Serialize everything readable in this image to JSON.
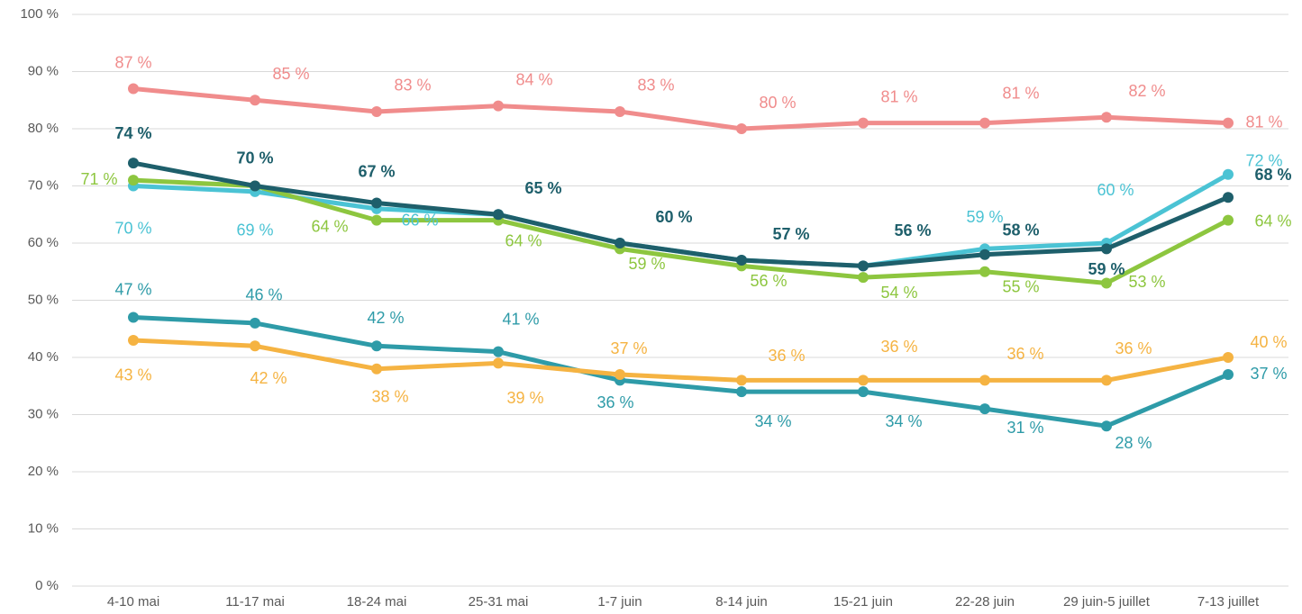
{
  "chart_data": {
    "type": "line",
    "categories": [
      "4-10 mai",
      "11-17 mai",
      "18-24 mai",
      "25-31 mai",
      "1-7 juin",
      "8-14 juin",
      "15-21 juin",
      "22-28 juin",
      "29 juin-5 juillet",
      "7-13 juillet"
    ],
    "ylim": [
      0,
      100
    ],
    "yticks": [
      {
        "value": 0,
        "label": "0 %"
      },
      {
        "value": 10,
        "label": "10 %"
      },
      {
        "value": 20,
        "label": "20 %"
      },
      {
        "value": 30,
        "label": "30 %"
      },
      {
        "value": 40,
        "label": "40 %"
      },
      {
        "value": 50,
        "label": "50 %"
      },
      {
        "value": 60,
        "label": "60 %"
      },
      {
        "value": 70,
        "label": "70 %"
      },
      {
        "value": 80,
        "label": "80 %"
      },
      {
        "value": 90,
        "label": "90 %"
      },
      {
        "value": 100,
        "label": "100 %"
      }
    ],
    "grid": true,
    "series": [
      {
        "color": "#f08c8c",
        "values": [
          87,
          85,
          83,
          84,
          83,
          80,
          81,
          81,
          82,
          81
        ],
        "value_labels": [
          "87 %",
          "85 %",
          "83 %",
          "84 %",
          "83 %",
          "80 %",
          "81 %",
          "81 %",
          "82 %",
          "81 %"
        ]
      },
      {
        "color": "#4bc3d4",
        "values": [
          70,
          69,
          66,
          65,
          60,
          57,
          56,
          59,
          60,
          72
        ],
        "value_labels": [
          "70 %",
          "69 %",
          "66 %",
          null,
          null,
          null,
          null,
          "59 %",
          "60 %",
          "72 %"
        ]
      },
      {
        "color": "#8dc63f",
        "values": [
          71,
          70,
          64,
          64,
          59,
          56,
          54,
          55,
          53,
          64
        ],
        "value_labels": [
          "71 %",
          null,
          "64 %",
          "64 %",
          "59 %",
          "56 %",
          "54 %",
          "55 %",
          "53 %",
          "64 %"
        ]
      },
      {
        "color": "#1e5f6b",
        "bold": true,
        "values": [
          74,
          70,
          67,
          65,
          60,
          57,
          56,
          58,
          59,
          68
        ],
        "value_labels": [
          "74 %",
          "70 %",
          "67 %",
          "65 %",
          "60 %",
          "57 %",
          "56 %",
          "58 %",
          "59 %",
          "68 %"
        ]
      },
      {
        "color": "#2e9ba8",
        "values": [
          47,
          46,
          42,
          41,
          36,
          34,
          34,
          31,
          28,
          37
        ],
        "value_labels": [
          "47 %",
          "46 %",
          "42 %",
          "41 %",
          "36 %",
          "34 %",
          "34 %",
          "31 %",
          "28 %",
          "37 %"
        ]
      },
      {
        "color": "#f5b342",
        "values": [
          43,
          42,
          38,
          39,
          37,
          36,
          36,
          36,
          36,
          40
        ],
        "value_labels": [
          "43 %",
          "42 %",
          "38 %",
          "39 %",
          "37 %",
          "36 %",
          "36 %",
          "36 %",
          "36 %",
          "40 %"
        ]
      }
    ]
  }
}
